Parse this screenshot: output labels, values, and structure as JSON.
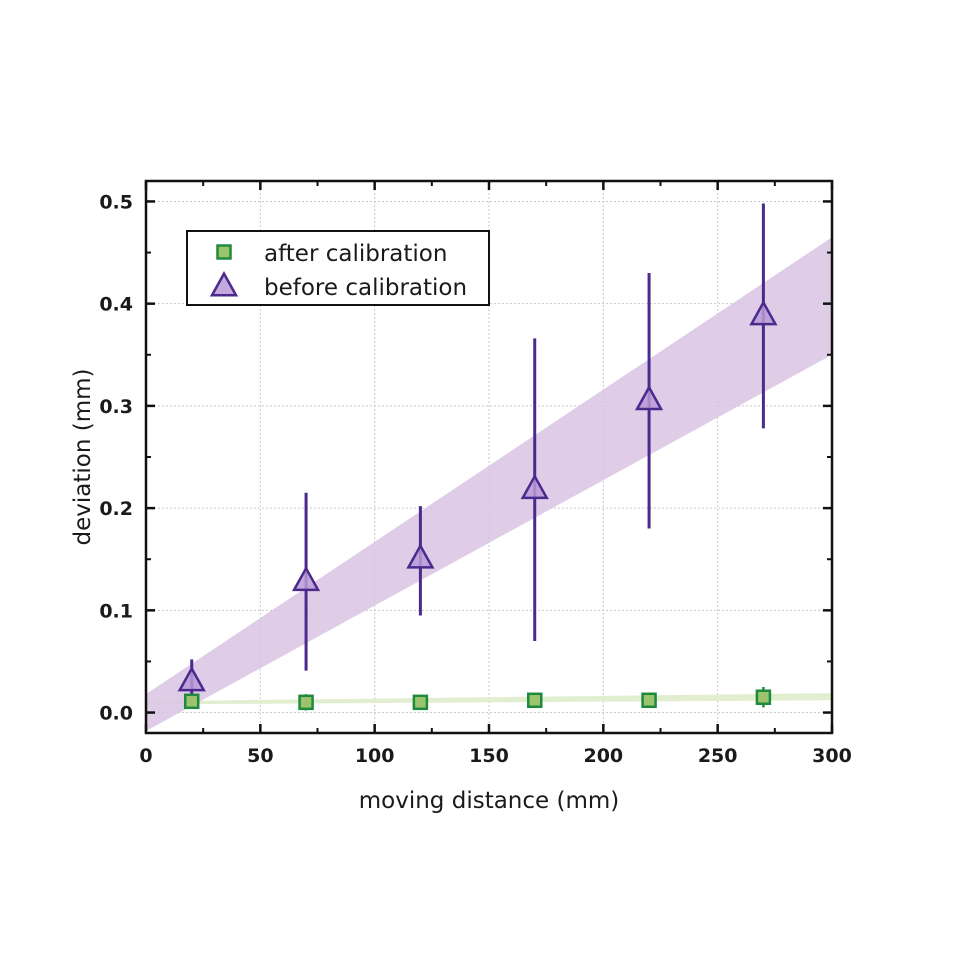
{
  "chart_data": {
    "type": "scatter",
    "title": "",
    "xlabel": "moving distance (mm)",
    "ylabel": "deviation (mm)",
    "xlim": [
      0,
      300
    ],
    "ylim": [
      -0.02,
      0.52
    ],
    "x_ticks": [
      0,
      50,
      100,
      150,
      200,
      250,
      300
    ],
    "x_tick_labels": [
      "0",
      "50",
      "100",
      "150",
      "200",
      "250",
      "300"
    ],
    "y_ticks": [
      0.0,
      0.1,
      0.2,
      0.3,
      0.4,
      0.5
    ],
    "y_tick_labels": [
      "0.0",
      "0.1",
      "0.2",
      "0.3",
      "0.4",
      "0.5"
    ],
    "grid": true,
    "legend_position": "top-left",
    "series": [
      {
        "name": "after calibration",
        "marker": "square",
        "color": "#1e8a3c",
        "fill": "#9cc46e",
        "band_color": "#dfeccb",
        "x": [
          20,
          70,
          120,
          170,
          220,
          270
        ],
        "y": [
          0.011,
          0.01,
          0.01,
          0.012,
          0.012,
          0.015
        ],
        "error": [
          0.006,
          0.008,
          0.006,
          0.007,
          0.006,
          0.01
        ],
        "band": {
          "x": [
            0,
            300
          ],
          "lower": [
            0.008,
            0.012
          ],
          "upper": [
            0.011,
            0.019
          ]
        }
      },
      {
        "name": "before calibration",
        "marker": "triangle",
        "color": "#4a2a8c",
        "fill": "#b99ad6",
        "band_color": "#d9c3e3",
        "x": [
          20,
          70,
          120,
          170,
          220,
          270
        ],
        "y": [
          0.03,
          0.128,
          0.15,
          0.218,
          0.305,
          0.388
        ],
        "error_low": [
          0.018,
          0.087,
          0.055,
          0.148,
          0.125,
          0.11
        ],
        "error_high": [
          0.022,
          0.087,
          0.052,
          0.148,
          0.125,
          0.11
        ],
        "band": {
          "x": [
            0,
            300
          ],
          "lower": [
            -0.018,
            0.35
          ],
          "upper": [
            0.018,
            0.465
          ]
        }
      }
    ]
  }
}
